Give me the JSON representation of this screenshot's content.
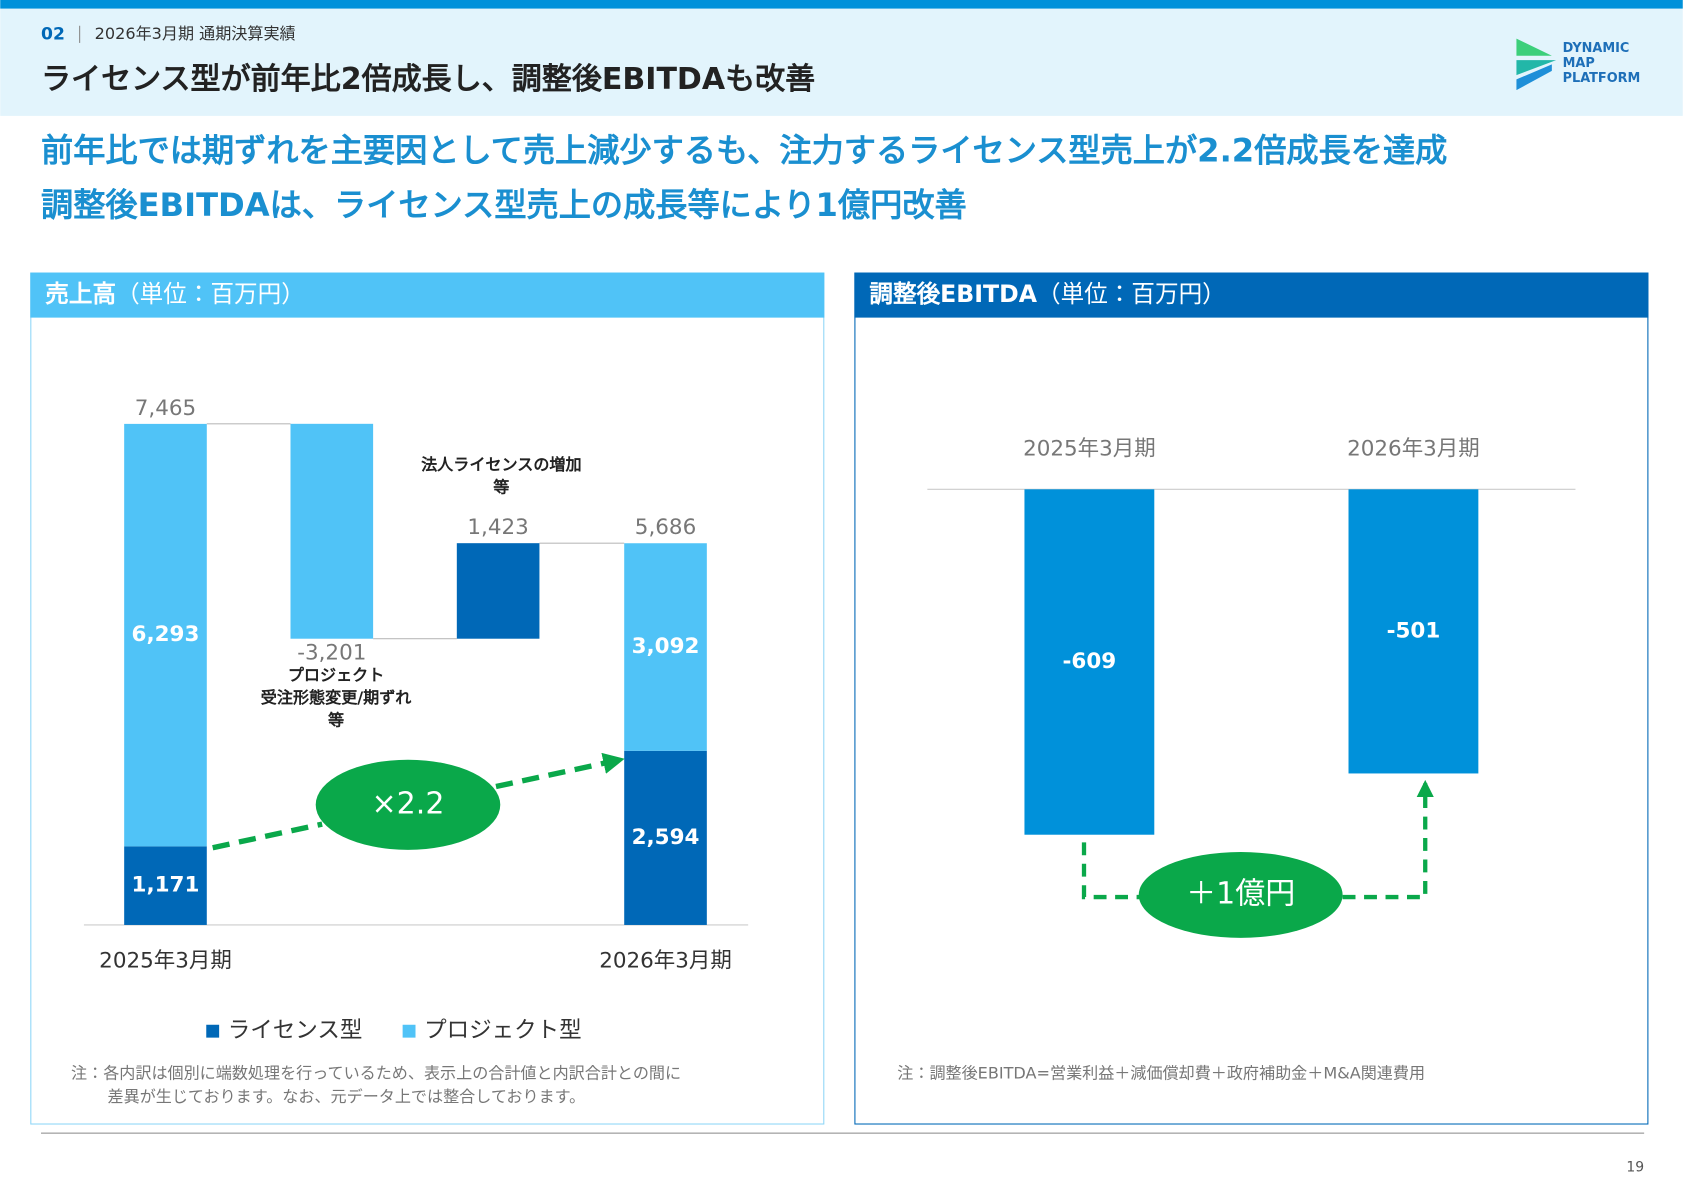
{
  "header": {
    "section": "02",
    "subtitle": "2026年3月期 通期決算実績",
    "title": "ライセンス型が前年比2倍成長し、調整後EBITDAも改善",
    "logo": [
      "DYNAMIC",
      "MAP",
      "PLATFORM"
    ]
  },
  "headline": [
    "前年比では期ずれを主要因として売上減少するも、注力するライセンス型売上が2.2倍成長を達成",
    "調整後EBITDAは、ライセンス型売上の成長等により1億円改善"
  ],
  "chart_data": [
    {
      "type": "waterfall",
      "title": "売上高",
      "unit": "（単位：百万円）",
      "categories": [
        "2025年3月期",
        null,
        null,
        "2026年3月期"
      ],
      "series": [
        {
          "name": "ライセンス型",
          "color": "#0068b7",
          "values": [
            1171,
            null,
            1423,
            2594
          ],
          "value_labels": [
            "1,171",
            null,
            "1,423",
            "2,594"
          ]
        },
        {
          "name": "プロジェクト型",
          "color": "#50c3f7",
          "values": [
            6293,
            -3201,
            null,
            3092
          ],
          "value_labels": [
            "6,293",
            "-3,201",
            null,
            "3,092"
          ]
        }
      ],
      "totals": [
        7465,
        null,
        null,
        5686
      ],
      "totals_labels": [
        "7,465",
        null,
        null,
        "5,686"
      ],
      "ylim": [
        0,
        8000
      ],
      "annotations": [
        [
          "プロジェクト",
          "受注形態変更/期ずれ",
          "等"
        ],
        [
          "法人ライセンスの増加",
          "等"
        ]
      ],
      "callout": "×2.2",
      "note": [
        "注：各内訳は個別に端数処理を行っているため、表示上の合計値と内訳合計との間に",
        "差異が生じております。なお、元データ上では整合しております。"
      ]
    },
    {
      "type": "bar",
      "title": "調整後EBITDA",
      "unit": "（単位：百万円）",
      "categories": [
        "2025年3月期",
        "2026年3月期"
      ],
      "values": [
        -609,
        -501
      ],
      "color": "#0091da",
      "ylim": [
        -700,
        0
      ],
      "callout": "＋1億円",
      "note": [
        "注：調整後EBITDA=営業利益＋減価償却費＋政府補助金＋M&A関連費用"
      ]
    }
  ],
  "page_number": "19"
}
